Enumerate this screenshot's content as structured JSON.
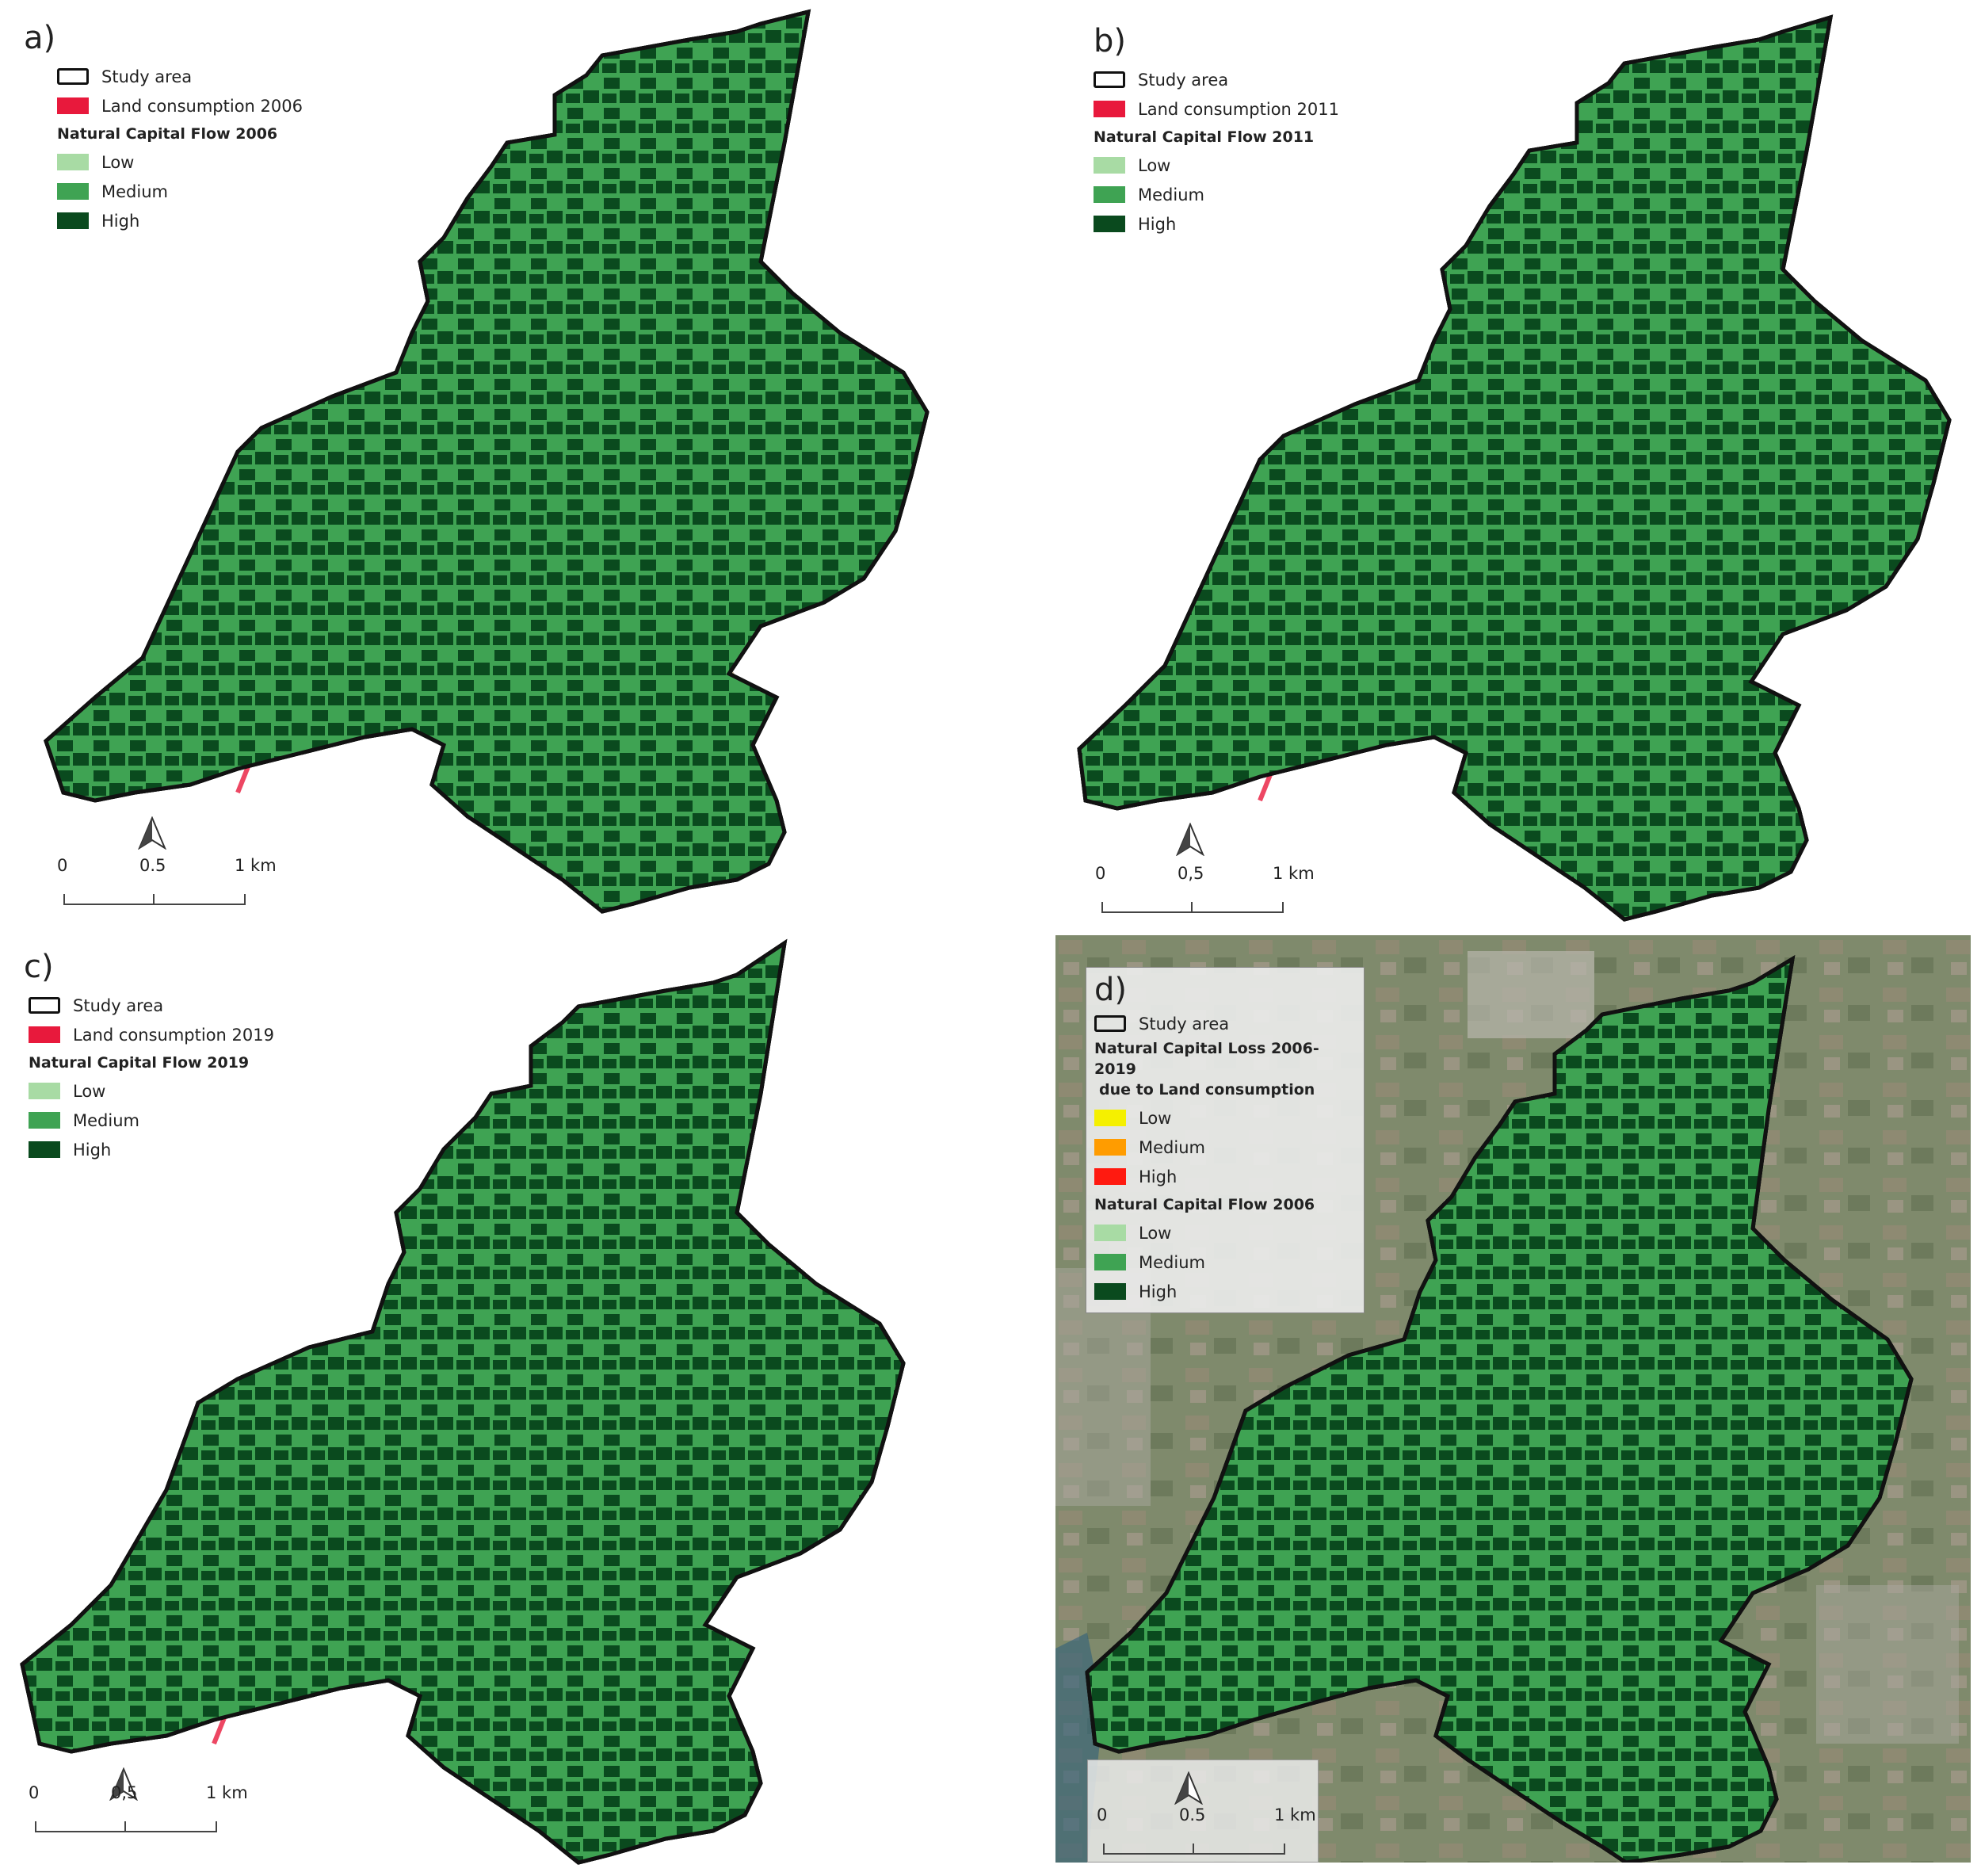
{
  "colors": {
    "land_consumption": "#e8193c",
    "low": "#a8dba4",
    "medium": "#3fa353",
    "high": "#0a4a1e",
    "loss_low": "#f5f000",
    "loss_medium": "#ff9c00",
    "loss_high": "#ff1a10",
    "outline": "#111111",
    "satellite": "#7d8a6e"
  },
  "panels": [
    {
      "letter": "a)",
      "legend": {
        "study_area": "Study area",
        "land_consumption": "Land consumption 2006",
        "flow_title": "Natural Capital Flow 2006",
        "low": "Low",
        "medium": "Medium",
        "high": "High"
      },
      "scale": {
        "t0": "0",
        "t1": "0.5",
        "t2": "1 km"
      }
    },
    {
      "letter": "b)",
      "legend": {
        "study_area": "Study area",
        "land_consumption": "Land consumption 2011",
        "flow_title": "Natural Capital Flow 2011",
        "low": "Low",
        "medium": "Medium",
        "high": "High"
      },
      "scale": {
        "t0": "0",
        "t1": "0,5",
        "t2": "1 km"
      }
    },
    {
      "letter": "c)",
      "legend": {
        "study_area": "Study area",
        "land_consumption": "Land consumption 2019",
        "flow_title": "Natural Capital Flow 2019",
        "low": "Low",
        "medium": "Medium",
        "high": "High"
      },
      "scale": {
        "t0": "0",
        "t1": "0,5",
        "t2": "1 km"
      }
    },
    {
      "letter": "d)",
      "legend": {
        "study_area": "Study area",
        "loss_title_1": "Natural Capital Loss 2006-2019",
        "loss_title_2": "due to Land consumption",
        "loss_low": "Low",
        "loss_medium": "Medium",
        "loss_high": "High",
        "flow_title": "Natural Capital Flow 2006",
        "low": "Low",
        "medium": "Medium",
        "high": "High"
      },
      "scale": {
        "t0": "0",
        "t1": "0.5",
        "t2": "1 km"
      }
    }
  ]
}
